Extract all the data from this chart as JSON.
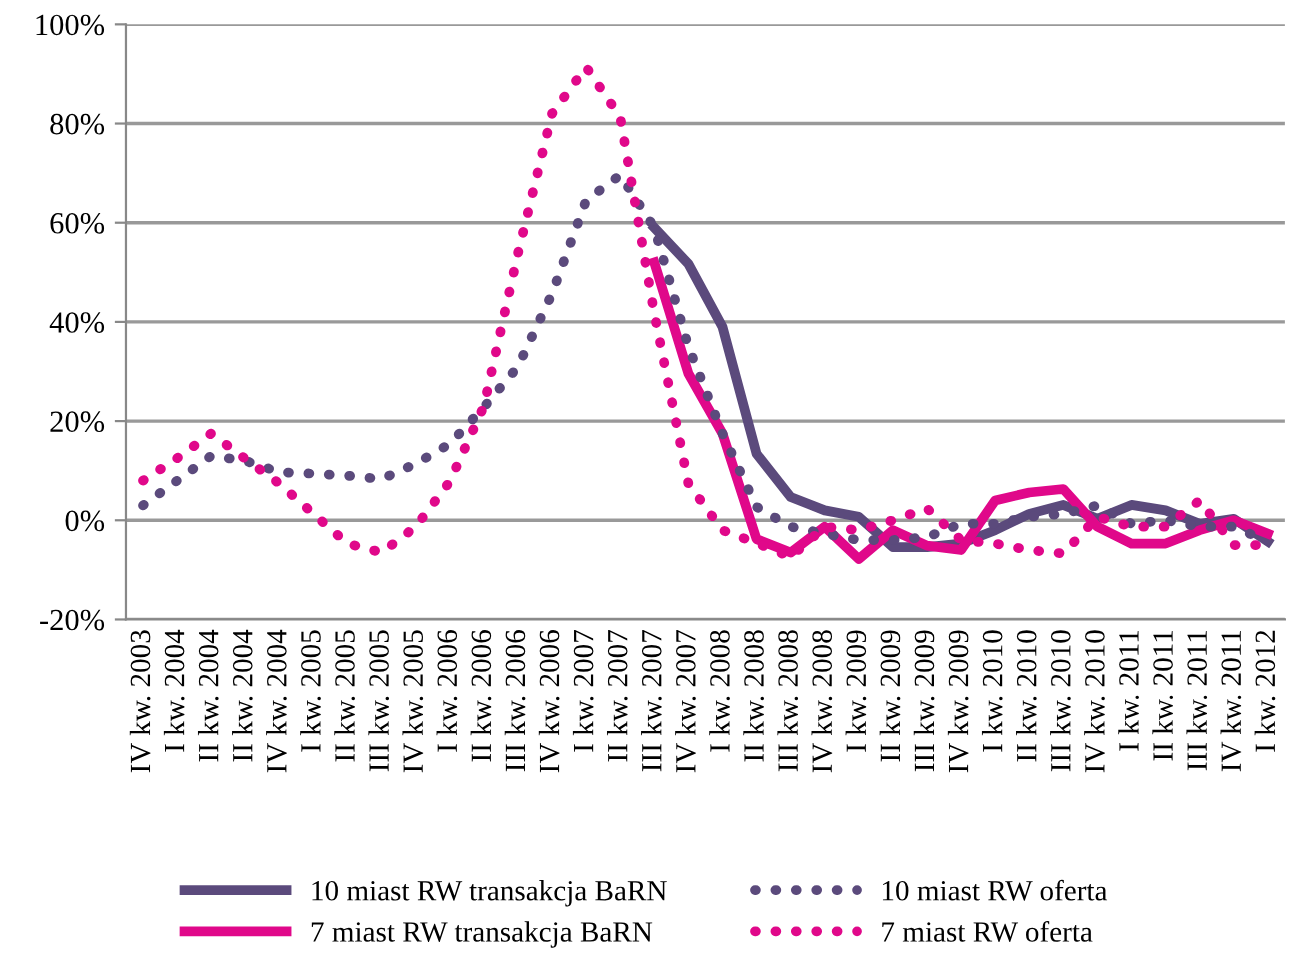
{
  "chart_data": {
    "type": "line",
    "categories": [
      "IV kw. 2003",
      "I kw. 2004",
      "II kw. 2004",
      "II kw. 2004",
      "IV kw. 2004",
      "I kw. 2005",
      "II kw. 2005",
      "III kw. 2005",
      "IV kw. 2005",
      "I kw. 2006",
      "II kw. 2006",
      "III kw. 2006",
      "IV kw. 2006",
      "I kw. 2007",
      "II kw. 2007",
      "III kw. 2007",
      "IV kw. 2007",
      "I kw. 2008",
      "II kw. 2008",
      "III kw. 2008",
      "IV kw. 2008",
      "I kw. 2009",
      "II kw. 2009",
      "III kw. 2009",
      "IV kw. 2009",
      "I kw. 2010",
      "II kw. 2010",
      "III kw. 2010",
      "IV kw. 2010",
      "I kw. 2011",
      "II kw. 2011",
      "III kw. 2011",
      "IV kw. 2011",
      "I kw. 2012"
    ],
    "series": [
      {
        "name": "10 miast RW transakcja BaRN",
        "color": "#5b4a7c",
        "line_style": "solid",
        "values": [
          null,
          null,
          null,
          null,
          null,
          null,
          null,
          null,
          null,
          null,
          null,
          null,
          null,
          null,
          null,
          59,
          51.7,
          39,
          13.4,
          4.7,
          2,
          0.7,
          -5.4,
          -5.4,
          -4.7,
          -2,
          1.3,
          3.1,
          0.3,
          3.1,
          2,
          -0.7,
          0.3,
          -4.3
        ]
      },
      {
        "name": "7 miast RW transakcja BaRN",
        "color": "#e0088a",
        "line_style": "solid",
        "values": [
          null,
          null,
          null,
          null,
          null,
          null,
          null,
          null,
          null,
          null,
          null,
          null,
          null,
          null,
          null,
          52,
          29.6,
          17.5,
          -3.8,
          -6.5,
          -1.3,
          -7.8,
          -2,
          -5.1,
          -6,
          4,
          5.6,
          6.3,
          -1.3,
          -4.7,
          -4.7,
          -2,
          0,
          -2.7
        ]
      },
      {
        "name": "10 miast RW oferta",
        "color": "#5b4a7c",
        "line_style": "dotted",
        "values": [
          3,
          8,
          13,
          12,
          9.7,
          9.4,
          9,
          8.3,
          11.4,
          15.4,
          22.8,
          31,
          45.7,
          64.5,
          69.6,
          59,
          35,
          17.5,
          2.7,
          -1.3,
          -2.7,
          -4,
          -4,
          -3.4,
          -0.7,
          -0.7,
          0.7,
          1.3,
          3,
          -0.7,
          0,
          -1.3,
          -1.3,
          -4.3
        ]
      },
      {
        "name": "7 miast RW oferta",
        "color": "#e0088a",
        "line_style": "dotted",
        "values": [
          8,
          12.5,
          17.5,
          12.4,
          7.4,
          1.3,
          -4.7,
          -6.5,
          -1.3,
          7.8,
          23,
          53.8,
          82,
          91.4,
          81.3,
          41.7,
          7.4,
          -2,
          -4.6,
          -7.4,
          -1.3,
          -2,
          0,
          2.4,
          -4,
          -4.7,
          -6,
          -6.7,
          0.7,
          -1.3,
          -1.3,
          4,
          -5,
          -5
        ]
      }
    ],
    "ylim": [
      -20,
      100
    ],
    "yticks": [
      {
        "value": -20,
        "label": "-20%"
      },
      {
        "value": 0,
        "label": "0%"
      },
      {
        "value": 20,
        "label": "20%"
      },
      {
        "value": 40,
        "label": "40%"
      },
      {
        "value": 60,
        "label": "60%"
      },
      {
        "value": 80,
        "label": "80%"
      },
      {
        "value": 100,
        "label": "100%"
      }
    ],
    "grid": "y",
    "legend": "bottom"
  }
}
